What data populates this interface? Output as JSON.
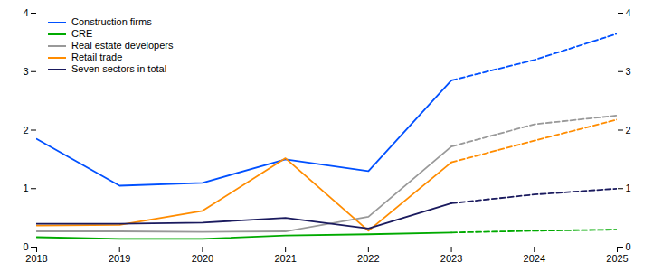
{
  "chart_data": {
    "type": "line",
    "x": [
      2018,
      2019,
      2020,
      2021,
      2022,
      2023,
      2024,
      2025
    ],
    "series": [
      {
        "name": "Construction firms",
        "color": "#0050FF",
        "line_style": "solid",
        "values": [
          1.85,
          1.05,
          1.1,
          1.5,
          1.3,
          2.85,
          null,
          null
        ]
      },
      {
        "color": "#0050FF",
        "line_style": "dashed",
        "values": [
          null,
          null,
          null,
          null,
          null,
          2.85,
          3.2,
          3.65
        ]
      },
      {
        "name": "CRE",
        "color": "#00AA00",
        "line_style": "solid",
        "values": [
          0.17,
          0.14,
          0.14,
          0.2,
          0.22,
          0.25,
          null,
          null
        ]
      },
      {
        "color": "#00AA00",
        "line_style": "dashed",
        "values": [
          null,
          null,
          null,
          null,
          null,
          0.25,
          0.28,
          0.3
        ]
      },
      {
        "name": "Real estate developers",
        "color": "#999999",
        "line_style": "solid",
        "values": [
          0.27,
          0.27,
          0.26,
          0.27,
          0.52,
          1.72,
          null,
          null
        ]
      },
      {
        "color": "#999999",
        "line_style": "dashed",
        "values": [
          null,
          null,
          null,
          null,
          null,
          1.72,
          2.1,
          2.25
        ]
      },
      {
        "name": "Retail trade",
        "color": "#FF8C00",
        "line_style": "solid",
        "values": [
          0.37,
          0.38,
          0.62,
          1.52,
          0.28,
          1.45,
          null,
          null
        ]
      },
      {
        "color": "#FF8C00",
        "line_style": "dashed",
        "values": [
          null,
          null,
          null,
          null,
          null,
          1.45,
          1.82,
          2.18
        ]
      },
      {
        "name": "Seven sectors in total",
        "color": "#1a1a5e",
        "line_style": "solid",
        "values": [
          0.4,
          0.4,
          0.42,
          0.5,
          0.32,
          0.75,
          null,
          null
        ]
      },
      {
        "color": "#1a1a5e",
        "line_style": "dashed",
        "values": [
          null,
          null,
          null,
          null,
          null,
          0.75,
          0.9,
          1.0
        ]
      }
    ],
    "xlim": [
      2018,
      2025
    ],
    "xticks": [
      2018,
      2019,
      2020,
      2021,
      2022,
      2023,
      2024,
      2025
    ],
    "ylim": [
      0,
      4
    ],
    "yticks": [
      0,
      1,
      2,
      3,
      4
    ],
    "y2lim": [
      0,
      4
    ],
    "y2ticks": [
      0,
      1,
      2,
      3,
      4
    ],
    "grid": false,
    "legend": "upper left"
  }
}
